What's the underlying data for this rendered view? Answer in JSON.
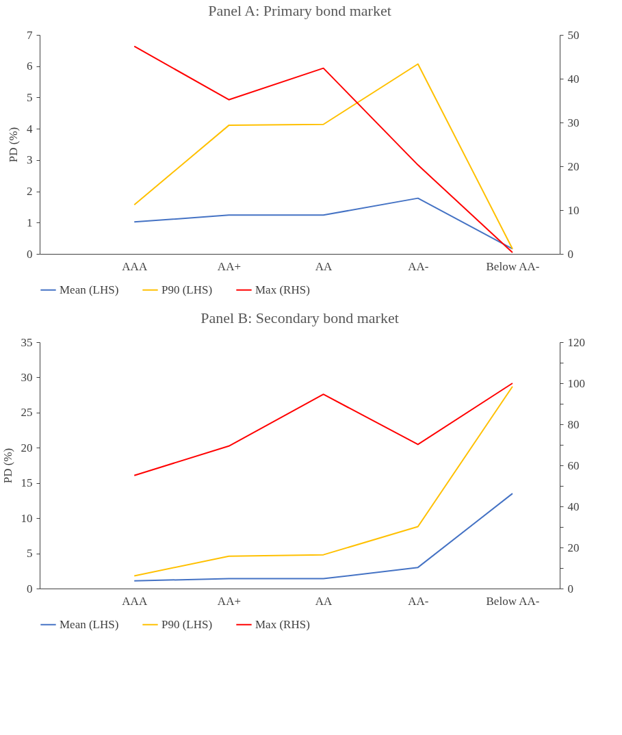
{
  "chart_data": [
    {
      "type": "line",
      "title": "Panel A: Primary bond market",
      "ylabel": "PD (%)",
      "categories": [
        "AAA",
        "AA+",
        "AA",
        "AA-",
        "Below AA-"
      ],
      "series": [
        {
          "name": "Mean (LHS)",
          "color": "#4472c4",
          "values": [
            1.02,
            1.24,
            1.24,
            1.78,
            0.16
          ]
        },
        {
          "name": "P90 (LHS)",
          "color": "#ffc000",
          "values": [
            1.57,
            4.11,
            4.14,
            6.07,
            0.16
          ]
        },
        {
          "name": "Max (RHS)",
          "color": "#ff0000",
          "axis": "y2",
          "values": [
            47.4,
            35.2,
            42.4,
            20.3,
            0.3
          ]
        }
      ],
      "ylim": [
        0,
        7
      ],
      "yticks": [
        0,
        1,
        2,
        3,
        4,
        5,
        6,
        7
      ],
      "y2lim": [
        0,
        50
      ],
      "y2ticks": [
        0,
        10,
        20,
        30,
        40,
        50
      ],
      "grid": false,
      "legend": "bottom",
      "marker": "none",
      "line_style": "solid"
    },
    {
      "type": "line",
      "title": "Panel B: Secondary bond market",
      "ylabel": "PD (%)",
      "categories": [
        "AAA",
        "AA+",
        "AA",
        "AA-",
        "Below AA-"
      ],
      "series": [
        {
          "name": "Mean (LHS)",
          "color": "#4472c4",
          "values": [
            1.1,
            1.4,
            1.4,
            3.0,
            13.5
          ]
        },
        {
          "name": "P90 (LHS)",
          "color": "#ffc000",
          "values": [
            1.8,
            4.6,
            4.8,
            8.8,
            28.7
          ]
        },
        {
          "name": "Max (RHS)",
          "color": "#ff0000",
          "axis": "y2",
          "values": [
            55.1,
            69.4,
            94.6,
            70.2,
            100
          ]
        }
      ],
      "ylim": [
        0,
        35
      ],
      "yticks": [
        0,
        5,
        10,
        15,
        20,
        25,
        30,
        35
      ],
      "y2lim": [
        0,
        120
      ],
      "y2ticks": [
        0,
        {
          "value": 10,
          "label": null
        },
        20,
        {
          "value": 30,
          "label": null
        },
        40,
        {
          "value": 50,
          "label": null
        },
        60,
        {
          "value": 70,
          "label": null
        },
        80,
        {
          "value": 90,
          "label": null
        },
        100,
        {
          "value": 110,
          "label": null
        },
        120
      ],
      "grid": false,
      "legend": "bottom",
      "marker": "none",
      "line_style": "solid"
    }
  ]
}
